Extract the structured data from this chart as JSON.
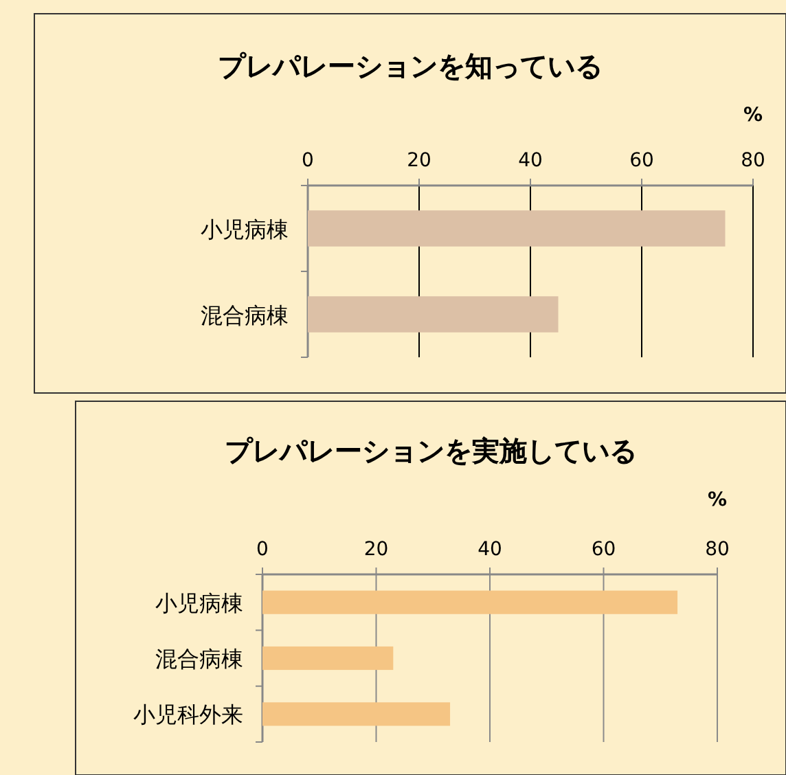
{
  "chart_data": [
    {
      "type": "bar",
      "orientation": "horizontal",
      "title": "プレパレーションを知っている",
      "xlabel": "%",
      "categories": [
        "小児病棟",
        "混合病棟"
      ],
      "values": [
        75,
        45
      ],
      "color": "#dcc0a6",
      "xlim": [
        0,
        80
      ],
      "xticks": [
        0,
        20,
        40,
        60,
        80
      ],
      "grid": "x"
    },
    {
      "type": "bar",
      "orientation": "horizontal",
      "title": "プレパレーションを実施している",
      "xlabel": "%",
      "categories": [
        "小児病棟",
        "混合病棟",
        "小児科外来"
      ],
      "values": [
        73,
        23,
        33
      ],
      "color": "#f5c584",
      "xlim": [
        0,
        80
      ],
      "xticks": [
        0,
        20,
        40,
        60,
        80
      ],
      "grid": "x"
    }
  ]
}
